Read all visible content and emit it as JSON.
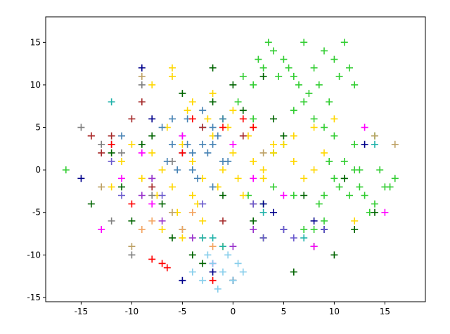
{
  "chart_data": {
    "type": "scatter",
    "marker": "+",
    "xlim": [
      -18.5,
      19
    ],
    "ylim": [
      -15.5,
      18
    ],
    "xticks": [
      -15,
      -10,
      -5,
      0,
      5,
      10,
      15
    ],
    "yticks": [
      -15,
      -10,
      -5,
      0,
      5,
      10,
      15
    ],
    "series": [
      {
        "color": "#32cd32",
        "x": [
          3,
          4,
          5,
          6,
          7,
          8,
          9,
          10,
          11,
          7.5,
          8.5,
          9.5,
          6.5,
          5.5,
          4.5,
          10.5,
          11.5,
          12,
          3.5,
          2.5,
          8,
          9,
          7,
          6,
          10,
          5,
          4,
          11,
          12.5,
          13,
          14,
          15,
          16,
          12,
          11,
          10,
          9,
          13.5,
          14.5,
          15.5,
          8.5,
          9.5,
          10.5,
          11.5,
          12.5,
          1,
          2,
          -1,
          0.5,
          -16.5,
          6,
          7,
          3,
          4,
          1.5,
          2,
          14,
          9,
          8,
          12
        ],
        "values": [
          12,
          14,
          13,
          11,
          15,
          12,
          14,
          13,
          15,
          9,
          10,
          8,
          10,
          12,
          11,
          11,
          12,
          10,
          15,
          13,
          6,
          5,
          8,
          7,
          4,
          3,
          2,
          -1,
          -2,
          -3,
          -4,
          -2,
          -1,
          0,
          1,
          -1,
          -3,
          -5,
          0,
          -2,
          -4,
          1,
          -2,
          -3,
          0,
          11,
          10,
          6,
          8,
          0,
          -3,
          -7,
          -4,
          -2,
          -3,
          6,
          4,
          -6,
          -7,
          3
        ]
      },
      {
        "color": "#ffd700",
        "x": [
          -8,
          -7,
          -6,
          -5,
          -4,
          -3,
          -2,
          -1,
          0,
          1,
          2,
          3,
          4,
          5,
          6,
          7,
          8,
          9,
          -9,
          -10,
          -7.5,
          -6.5,
          -5.5,
          -4.5,
          -3.5,
          -2.5,
          -1.5,
          -0.5,
          0.5,
          1.5,
          -8,
          -6,
          -4,
          -2,
          0,
          2,
          4,
          -11,
          -12,
          -7,
          -5,
          -3,
          -1,
          6,
          8,
          10,
          12,
          -6,
          -4,
          3
        ],
        "values": [
          2,
          0,
          -2,
          3,
          1,
          -1,
          4,
          0,
          2,
          -3,
          1,
          -1,
          2,
          3,
          1,
          -1,
          0,
          2,
          -1,
          3,
          -3,
          5,
          -5,
          7,
          -4,
          6,
          -2,
          5,
          -1,
          4,
          10,
          11,
          8,
          9,
          7,
          5,
          3,
          1,
          -2,
          -7,
          -8,
          -6,
          -9,
          4,
          5,
          6,
          -6,
          12,
          -3,
          0
        ]
      },
      {
        "color": "#4682b4",
        "x": [
          -6,
          -5,
          -4,
          -3,
          -2,
          -1,
          -5.5,
          -4.5,
          -3.5,
          -2.5,
          -1.5,
          -6.5,
          -7,
          -4,
          -3,
          -2,
          -5,
          -12,
          -11,
          -0.5,
          -3,
          -4.5,
          -2,
          -1,
          -6
        ],
        "values": [
          3,
          4,
          2,
          5,
          3,
          1,
          0,
          6,
          -1,
          2,
          4,
          1,
          5,
          0,
          7,
          -2,
          2,
          3,
          4,
          1,
          3,
          3,
          5,
          6,
          6
        ]
      },
      {
        "color": "#006400",
        "x": [
          -14,
          -12,
          -10,
          -8,
          -6,
          -4,
          -2,
          0,
          2,
          4,
          6,
          8,
          10,
          12,
          14,
          -11,
          -9,
          -7,
          -5,
          -3,
          -1,
          1,
          3,
          5,
          7,
          9,
          11,
          -2,
          0,
          3
        ],
        "values": [
          -4,
          2,
          -6,
          4,
          -8,
          -10,
          8,
          10,
          -6,
          6,
          -12,
          -9,
          -10,
          -7,
          -5,
          -2,
          3,
          -4,
          9,
          -11,
          -3,
          7,
          -8,
          4,
          -3,
          -7,
          -1,
          12,
          -13,
          11
        ]
      },
      {
        "color": "#00008b",
        "x": [
          -15,
          -9,
          -5,
          -2,
          0,
          4,
          5,
          8,
          9,
          13,
          -8,
          3
        ],
        "values": [
          -1,
          12,
          -13,
          -12,
          -13,
          -5,
          -7,
          -6,
          -7,
          3,
          6,
          -4
        ]
      },
      {
        "color": "#ff0000",
        "x": [
          -7,
          -6.5,
          -8,
          -14,
          -12,
          -4,
          -1,
          1,
          2,
          -2,
          -10,
          -5
        ],
        "values": [
          -11,
          -11.5,
          -10.5,
          4,
          3,
          6,
          5,
          6,
          5,
          -13,
          -4,
          2
        ]
      },
      {
        "color": "#ff00ff",
        "x": [
          -13,
          -11,
          -8,
          -5,
          0,
          2,
          5,
          8,
          13,
          15,
          -9,
          -2
        ],
        "values": [
          -7,
          -1,
          -4,
          4,
          3,
          -1,
          -3,
          -9,
          5,
          -5,
          2,
          -11
        ]
      },
      {
        "color": "#a52a2a",
        "x": [
          -14,
          -13,
          -12,
          -10,
          -9,
          -8,
          -3,
          -1,
          1,
          2
        ],
        "values": [
          4,
          2,
          4,
          6,
          8,
          -2,
          5,
          -6,
          4,
          -4
        ]
      },
      {
        "color": "#6a5acd",
        "x": [
          -11,
          -8,
          -7,
          -3,
          2,
          3,
          5,
          6,
          9,
          -12
        ],
        "values": [
          -3,
          -1,
          -3,
          -4,
          -4,
          -8,
          -7,
          -8,
          -7,
          1
        ]
      },
      {
        "color": "#808080",
        "x": [
          -15,
          -13,
          -12,
          -10,
          -9,
          -11,
          -8,
          -6
        ],
        "values": [
          5,
          3,
          -6,
          -10,
          10,
          2,
          -3,
          1
        ]
      },
      {
        "color": "#bda165",
        "x": [
          -10,
          -13,
          -9,
          -6,
          3,
          14,
          16,
          -3
        ],
        "values": [
          -9,
          -2,
          11,
          -5,
          2,
          4,
          3,
          -8
        ]
      },
      {
        "color": "#87ceeb",
        "x": [
          -1,
          -2,
          0,
          1,
          -0.5,
          -1.5,
          -3,
          -4,
          -2.5,
          0.5
        ],
        "values": [
          -12,
          -11,
          -13,
          -12,
          -10,
          -14,
          -13,
          -12,
          -10,
          -11
        ]
      },
      {
        "color": "#20b2aa",
        "x": [
          -3,
          -2,
          -1,
          3,
          7,
          14,
          -12,
          -5
        ],
        "values": [
          -8,
          -8,
          -9,
          -5,
          -8,
          3,
          8,
          -7
        ]
      },
      {
        "color": "#f4a460",
        "x": [
          -9,
          -8,
          -5,
          -4,
          -2
        ],
        "values": [
          -7,
          -6,
          -7,
          -5,
          -9
        ]
      },
      {
        "color": "#9932cc",
        "x": [
          -9,
          -7,
          -4,
          -8,
          2,
          0
        ],
        "values": [
          -3,
          -6,
          -8,
          -1,
          -7,
          -9
        ]
      }
    ]
  }
}
